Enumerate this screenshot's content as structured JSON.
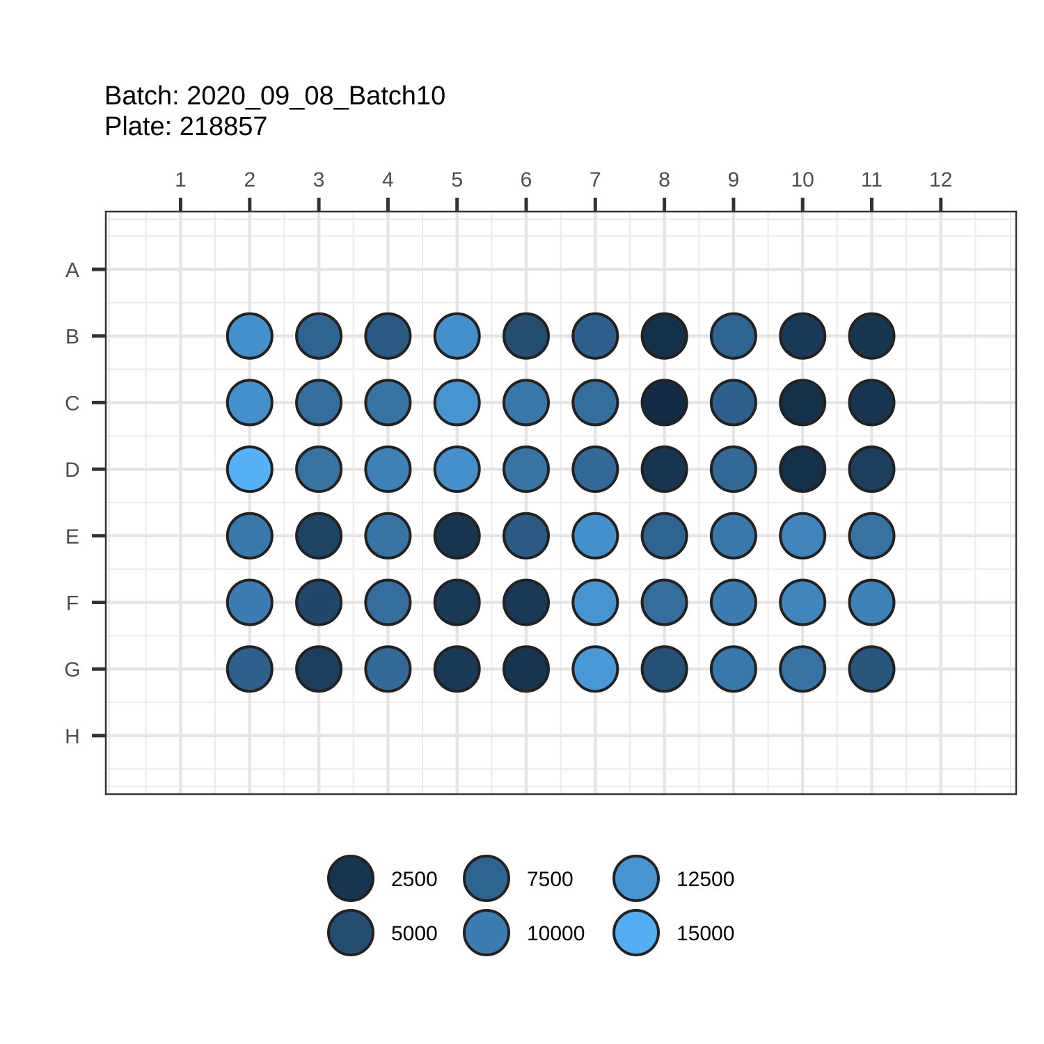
{
  "chart_data": {
    "type": "scatter",
    "title": "Batch: 2020_09_08_Batch10",
    "subtitle": "Plate: 218857",
    "xlabel": "",
    "ylabel": "",
    "columns": [
      "1",
      "2",
      "3",
      "4",
      "5",
      "6",
      "7",
      "8",
      "9",
      "10",
      "11",
      "12"
    ],
    "rows": [
      "A",
      "B",
      "C",
      "D",
      "E",
      "F",
      "G",
      "H"
    ],
    "grid": true,
    "legend_position": "bottom",
    "legend": {
      "breaks": [
        2500,
        5000,
        7500,
        10000,
        12500,
        15000
      ],
      "labels": [
        "2500",
        "5000",
        "7500",
        "10000",
        "12500",
        "15000"
      ]
    },
    "color_scale": {
      "low": "#132B43",
      "high": "#56B1F7",
      "min": 1500,
      "max": 15500
    },
    "wells": [
      {
        "row": "B",
        "col": 2,
        "value": 12000
      },
      {
        "row": "B",
        "col": 3,
        "value": 7500
      },
      {
        "row": "B",
        "col": 4,
        "value": 6500
      },
      {
        "row": "B",
        "col": 5,
        "value": 12000
      },
      {
        "row": "B",
        "col": 6,
        "value": 5000
      },
      {
        "row": "B",
        "col": 7,
        "value": 7000
      },
      {
        "row": "B",
        "col": 8,
        "value": 2000
      },
      {
        "row": "B",
        "col": 9,
        "value": 7500
      },
      {
        "row": "B",
        "col": 10,
        "value": 3000
      },
      {
        "row": "B",
        "col": 11,
        "value": 2500
      },
      {
        "row": "C",
        "col": 2,
        "value": 12000
      },
      {
        "row": "C",
        "col": 3,
        "value": 8500
      },
      {
        "row": "C",
        "col": 4,
        "value": 9000
      },
      {
        "row": "C",
        "col": 5,
        "value": 12500
      },
      {
        "row": "C",
        "col": 6,
        "value": 9500
      },
      {
        "row": "C",
        "col": 7,
        "value": 8500
      },
      {
        "row": "C",
        "col": 8,
        "value": 1500
      },
      {
        "row": "C",
        "col": 9,
        "value": 7000
      },
      {
        "row": "C",
        "col": 10,
        "value": 2000
      },
      {
        "row": "C",
        "col": 11,
        "value": 2500
      },
      {
        "row": "D",
        "col": 2,
        "value": 15500
      },
      {
        "row": "D",
        "col": 3,
        "value": 9000
      },
      {
        "row": "D",
        "col": 4,
        "value": 10500
      },
      {
        "row": "D",
        "col": 5,
        "value": 12000
      },
      {
        "row": "D",
        "col": 6,
        "value": 9000
      },
      {
        "row": "D",
        "col": 7,
        "value": 8000
      },
      {
        "row": "D",
        "col": 8,
        "value": 2500
      },
      {
        "row": "D",
        "col": 9,
        "value": 8000
      },
      {
        "row": "D",
        "col": 10,
        "value": 2000
      },
      {
        "row": "D",
        "col": 11,
        "value": 3500
      },
      {
        "row": "E",
        "col": 2,
        "value": 9500
      },
      {
        "row": "E",
        "col": 3,
        "value": 4000
      },
      {
        "row": "E",
        "col": 4,
        "value": 9000
      },
      {
        "row": "E",
        "col": 5,
        "value": 2500
      },
      {
        "row": "E",
        "col": 6,
        "value": 6500
      },
      {
        "row": "E",
        "col": 7,
        "value": 12000
      },
      {
        "row": "E",
        "col": 8,
        "value": 7500
      },
      {
        "row": "E",
        "col": 9,
        "value": 9500
      },
      {
        "row": "E",
        "col": 10,
        "value": 11000
      },
      {
        "row": "E",
        "col": 11,
        "value": 9000
      },
      {
        "row": "F",
        "col": 2,
        "value": 10000
      },
      {
        "row": "F",
        "col": 3,
        "value": 4500
      },
      {
        "row": "F",
        "col": 4,
        "value": 8500
      },
      {
        "row": "F",
        "col": 5,
        "value": 3000
      },
      {
        "row": "F",
        "col": 6,
        "value": 3000
      },
      {
        "row": "F",
        "col": 7,
        "value": 12500
      },
      {
        "row": "F",
        "col": 8,
        "value": 8500
      },
      {
        "row": "F",
        "col": 9,
        "value": 10000
      },
      {
        "row": "F",
        "col": 10,
        "value": 11000
      },
      {
        "row": "F",
        "col": 11,
        "value": 10500
      },
      {
        "row": "G",
        "col": 2,
        "value": 7000
      },
      {
        "row": "G",
        "col": 3,
        "value": 3500
      },
      {
        "row": "G",
        "col": 4,
        "value": 8000
      },
      {
        "row": "G",
        "col": 5,
        "value": 3000
      },
      {
        "row": "G",
        "col": 6,
        "value": 2500
      },
      {
        "row": "G",
        "col": 7,
        "value": 13000
      },
      {
        "row": "G",
        "col": 8,
        "value": 5500
      },
      {
        "row": "G",
        "col": 9,
        "value": 9500
      },
      {
        "row": "G",
        "col": 10,
        "value": 9000
      },
      {
        "row": "G",
        "col": 11,
        "value": 6000
      }
    ]
  }
}
